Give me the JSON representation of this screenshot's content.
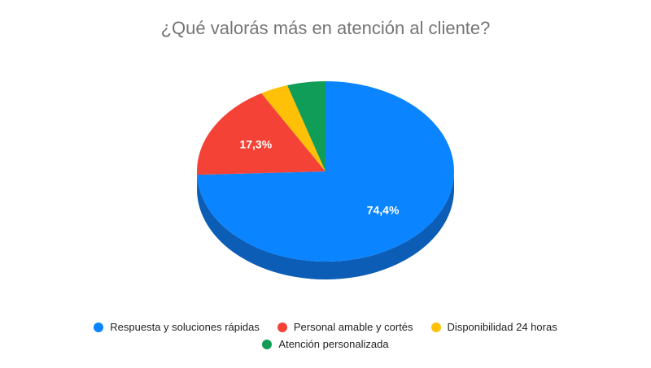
{
  "chart_data": {
    "type": "pie",
    "title": "¿Qué valorás más en atención al cliente?",
    "categories": [
      "Respuesta y soluciones rápidas",
      "Personal amable y cortés",
      "Disponibilidad 24 horas",
      "Atención personalizada"
    ],
    "values": [
      74.4,
      17.3,
      3.5,
      4.8
    ],
    "data_labels": [
      "74,4%",
      "17,3%",
      "",
      ""
    ],
    "colors": [
      "#0A84FF",
      "#F44336",
      "#FFC107",
      "#0F9D58"
    ],
    "side_colors": [
      "#0B5DB5",
      "#B0281D",
      "#C99100",
      "#0A7040"
    ],
    "legend_position": "bottom",
    "three_d": true
  }
}
